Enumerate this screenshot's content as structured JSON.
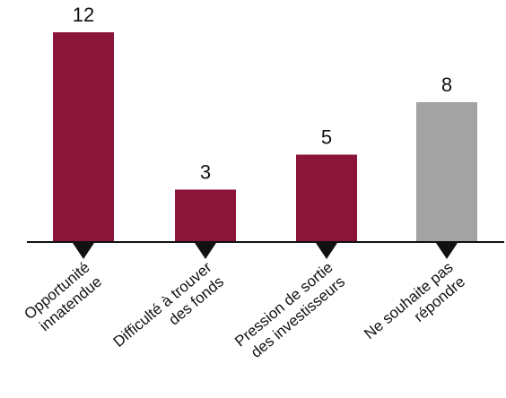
{
  "chart_data": {
    "type": "bar",
    "categories": [
      "Opportunité innatendue",
      "Difficulté à trouver des fonds",
      "Pression de sortie des investisseurs",
      "Ne souhaite pas répondre"
    ],
    "category_lines": [
      [
        "Opportunité",
        "innatendue"
      ],
      [
        "Difficulté à trouver",
        "des fonds"
      ],
      [
        "Pression de sortie",
        "des investisseurs"
      ],
      [
        "Ne souhaite pas",
        "répondre"
      ]
    ],
    "values": [
      12,
      3,
      5,
      8
    ],
    "value_labels": [
      "12",
      "3",
      "5",
      "8"
    ],
    "colors": [
      "#8B1538",
      "#8B1538",
      "#8B1538",
      "#A3A3A3"
    ],
    "title": "",
    "xlabel": "",
    "ylabel": "",
    "ylim": [
      0,
      12
    ],
    "grid": false,
    "legend": "none"
  }
}
